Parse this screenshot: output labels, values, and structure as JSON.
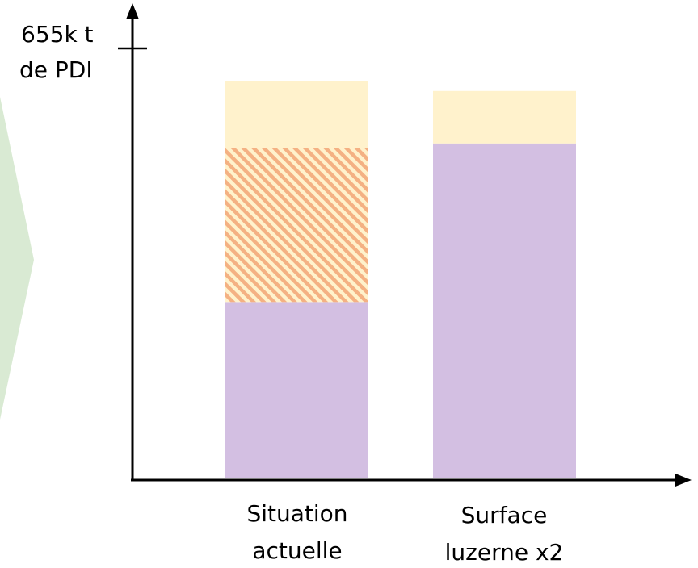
{
  "chart_data": {
    "type": "bar",
    "stacked": true,
    "categories": [
      "Situation actuelle",
      "Surface luzerne x2"
    ],
    "category_lines": [
      [
        "Situation",
        "actuelle"
      ],
      [
        "Surface",
        "luzerne x2"
      ]
    ],
    "ylim": [
      0,
      655
    ],
    "y_reference": {
      "value": 655,
      "lines": [
        "655k t",
        "de PDI"
      ]
    },
    "series": [
      {
        "values": [
          268,
          510
        ],
        "color": "#d3bfe2",
        "pattern": "solid"
      },
      {
        "values": [
          235,
          0
        ],
        "color": "#f4b183",
        "pattern": "hatched"
      },
      {
        "values": [
          102,
          80
        ],
        "color": "#fff2cc",
        "pattern": "solid"
      }
    ],
    "decoration_color": "#d9ead3",
    "legend": "none",
    "grid": false
  }
}
